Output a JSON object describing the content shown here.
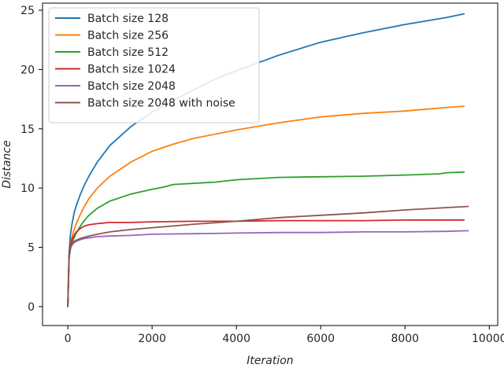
{
  "chart_data": {
    "type": "line",
    "xlabel": "Iteration",
    "ylabel": "Distance",
    "xlim": [
      -600,
      10200
    ],
    "ylim": [
      -1.6,
      25.6
    ],
    "xticks": [
      0,
      2000,
      4000,
      6000,
      8000,
      10000
    ],
    "xtick_labels": [
      "0",
      "2000",
      "4000",
      "6000",
      "8000",
      "10000"
    ],
    "yticks": [
      0,
      5,
      10,
      15,
      20,
      25
    ],
    "ytick_labels": [
      "0",
      "5",
      "10",
      "15",
      "20",
      "25"
    ],
    "grid": false,
    "legend_position": "upper-left",
    "series": [
      {
        "name": "Batch size 128",
        "color": "#1f77b4",
        "x": [
          0,
          30,
          60,
          100,
          150,
          200,
          300,
          400,
          500,
          700,
          1000,
          1500,
          2000,
          2500,
          3000,
          3500,
          4000,
          5000,
          6000,
          7000,
          8000,
          9000,
          9400
        ],
        "y": [
          0,
          4.5,
          6.0,
          7.0,
          7.9,
          8.5,
          9.5,
          10.3,
          11.0,
          12.2,
          13.6,
          15.2,
          16.4,
          17.4,
          18.3,
          19.2,
          19.9,
          21.2,
          22.3,
          23.1,
          23.8,
          24.4,
          24.7
        ]
      },
      {
        "name": "Batch size 256",
        "color": "#ff7f0e",
        "x": [
          0,
          30,
          60,
          100,
          150,
          200,
          300,
          400,
          500,
          700,
          1000,
          1500,
          2000,
          2500,
          3000,
          4000,
          5000,
          6000,
          7000,
          8000,
          9000,
          9400
        ],
        "y": [
          0,
          4.2,
          5.2,
          5.9,
          6.5,
          7.0,
          7.8,
          8.5,
          9.1,
          10.0,
          11.0,
          12.2,
          13.1,
          13.7,
          14.2,
          14.9,
          15.5,
          16.0,
          16.3,
          16.5,
          16.8,
          16.9
        ]
      },
      {
        "name": "Batch size 512",
        "color": "#2ca02c",
        "x": [
          0,
          30,
          60,
          100,
          150,
          200,
          300,
          400,
          500,
          700,
          1000,
          1500,
          2000,
          2300,
          2500,
          3000,
          3500,
          4000,
          5000,
          6000,
          7000,
          8000,
          8800,
          9000,
          9400
        ],
        "y": [
          0,
          4.0,
          4.8,
          5.4,
          5.8,
          6.2,
          6.8,
          7.3,
          7.7,
          8.3,
          8.9,
          9.5,
          9.9,
          10.1,
          10.3,
          10.4,
          10.5,
          10.7,
          10.9,
          10.95,
          11.0,
          11.1,
          11.2,
          11.3,
          11.35
        ]
      },
      {
        "name": "Batch size 1024",
        "color": "#d62728",
        "x": [
          0,
          30,
          60,
          100,
          150,
          200,
          300,
          400,
          500,
          700,
          1000,
          1500,
          2000,
          3000,
          4000,
          5000,
          6000,
          7000,
          8000,
          9000,
          9400
        ],
        "y": [
          0,
          4.3,
          5.2,
          5.7,
          6.0,
          6.3,
          6.6,
          6.8,
          6.9,
          7.0,
          7.1,
          7.1,
          7.15,
          7.2,
          7.2,
          7.25,
          7.25,
          7.25,
          7.3,
          7.3,
          7.3
        ]
      },
      {
        "name": "Batch size 2048",
        "color": "#9467bd",
        "x": [
          0,
          30,
          60,
          100,
          150,
          200,
          300,
          400,
          500,
          700,
          1000,
          1500,
          2000,
          3000,
          4000,
          5000,
          6000,
          7000,
          8000,
          9000,
          9500
        ],
        "y": [
          0,
          4.2,
          4.9,
          5.2,
          5.4,
          5.5,
          5.65,
          5.75,
          5.8,
          5.9,
          5.95,
          6.0,
          6.1,
          6.15,
          6.2,
          6.25,
          6.25,
          6.3,
          6.3,
          6.35,
          6.4
        ]
      },
      {
        "name": "Batch size 2048 with noise",
        "color": "#8c564b",
        "x": [
          0,
          30,
          60,
          100,
          150,
          200,
          300,
          400,
          500,
          700,
          1000,
          1500,
          2000,
          2500,
          3000,
          4000,
          5000,
          6000,
          7000,
          8000,
          9000,
          9500
        ],
        "y": [
          0,
          4.3,
          5.0,
          5.3,
          5.5,
          5.6,
          5.75,
          5.85,
          5.95,
          6.1,
          6.3,
          6.5,
          6.65,
          6.8,
          6.95,
          7.2,
          7.5,
          7.7,
          7.9,
          8.15,
          8.35,
          8.45
        ]
      }
    ]
  }
}
